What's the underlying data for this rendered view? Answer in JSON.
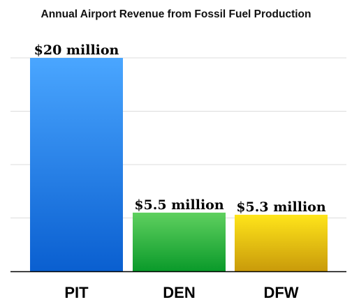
{
  "chart_data": {
    "type": "bar",
    "title": "Annual Airport Revenue from Fossil Fuel Production",
    "categories": [
      "PIT",
      "DEN",
      "DFW"
    ],
    "values": [
      20,
      5.5,
      5.3
    ],
    "value_labels": [
      "$20 million",
      "$5.5 million",
      "$5.3 million"
    ],
    "unit": "million USD",
    "ylim": [
      0,
      20
    ],
    "grid": true,
    "colors": [
      {
        "top": "#4aa6ff",
        "bottom": "#0a5fd0"
      },
      {
        "top": "#5fd05f",
        "bottom": "#0a9a2a"
      },
      {
        "top": "#ffe51a",
        "bottom": "#c99a0a"
      }
    ]
  }
}
